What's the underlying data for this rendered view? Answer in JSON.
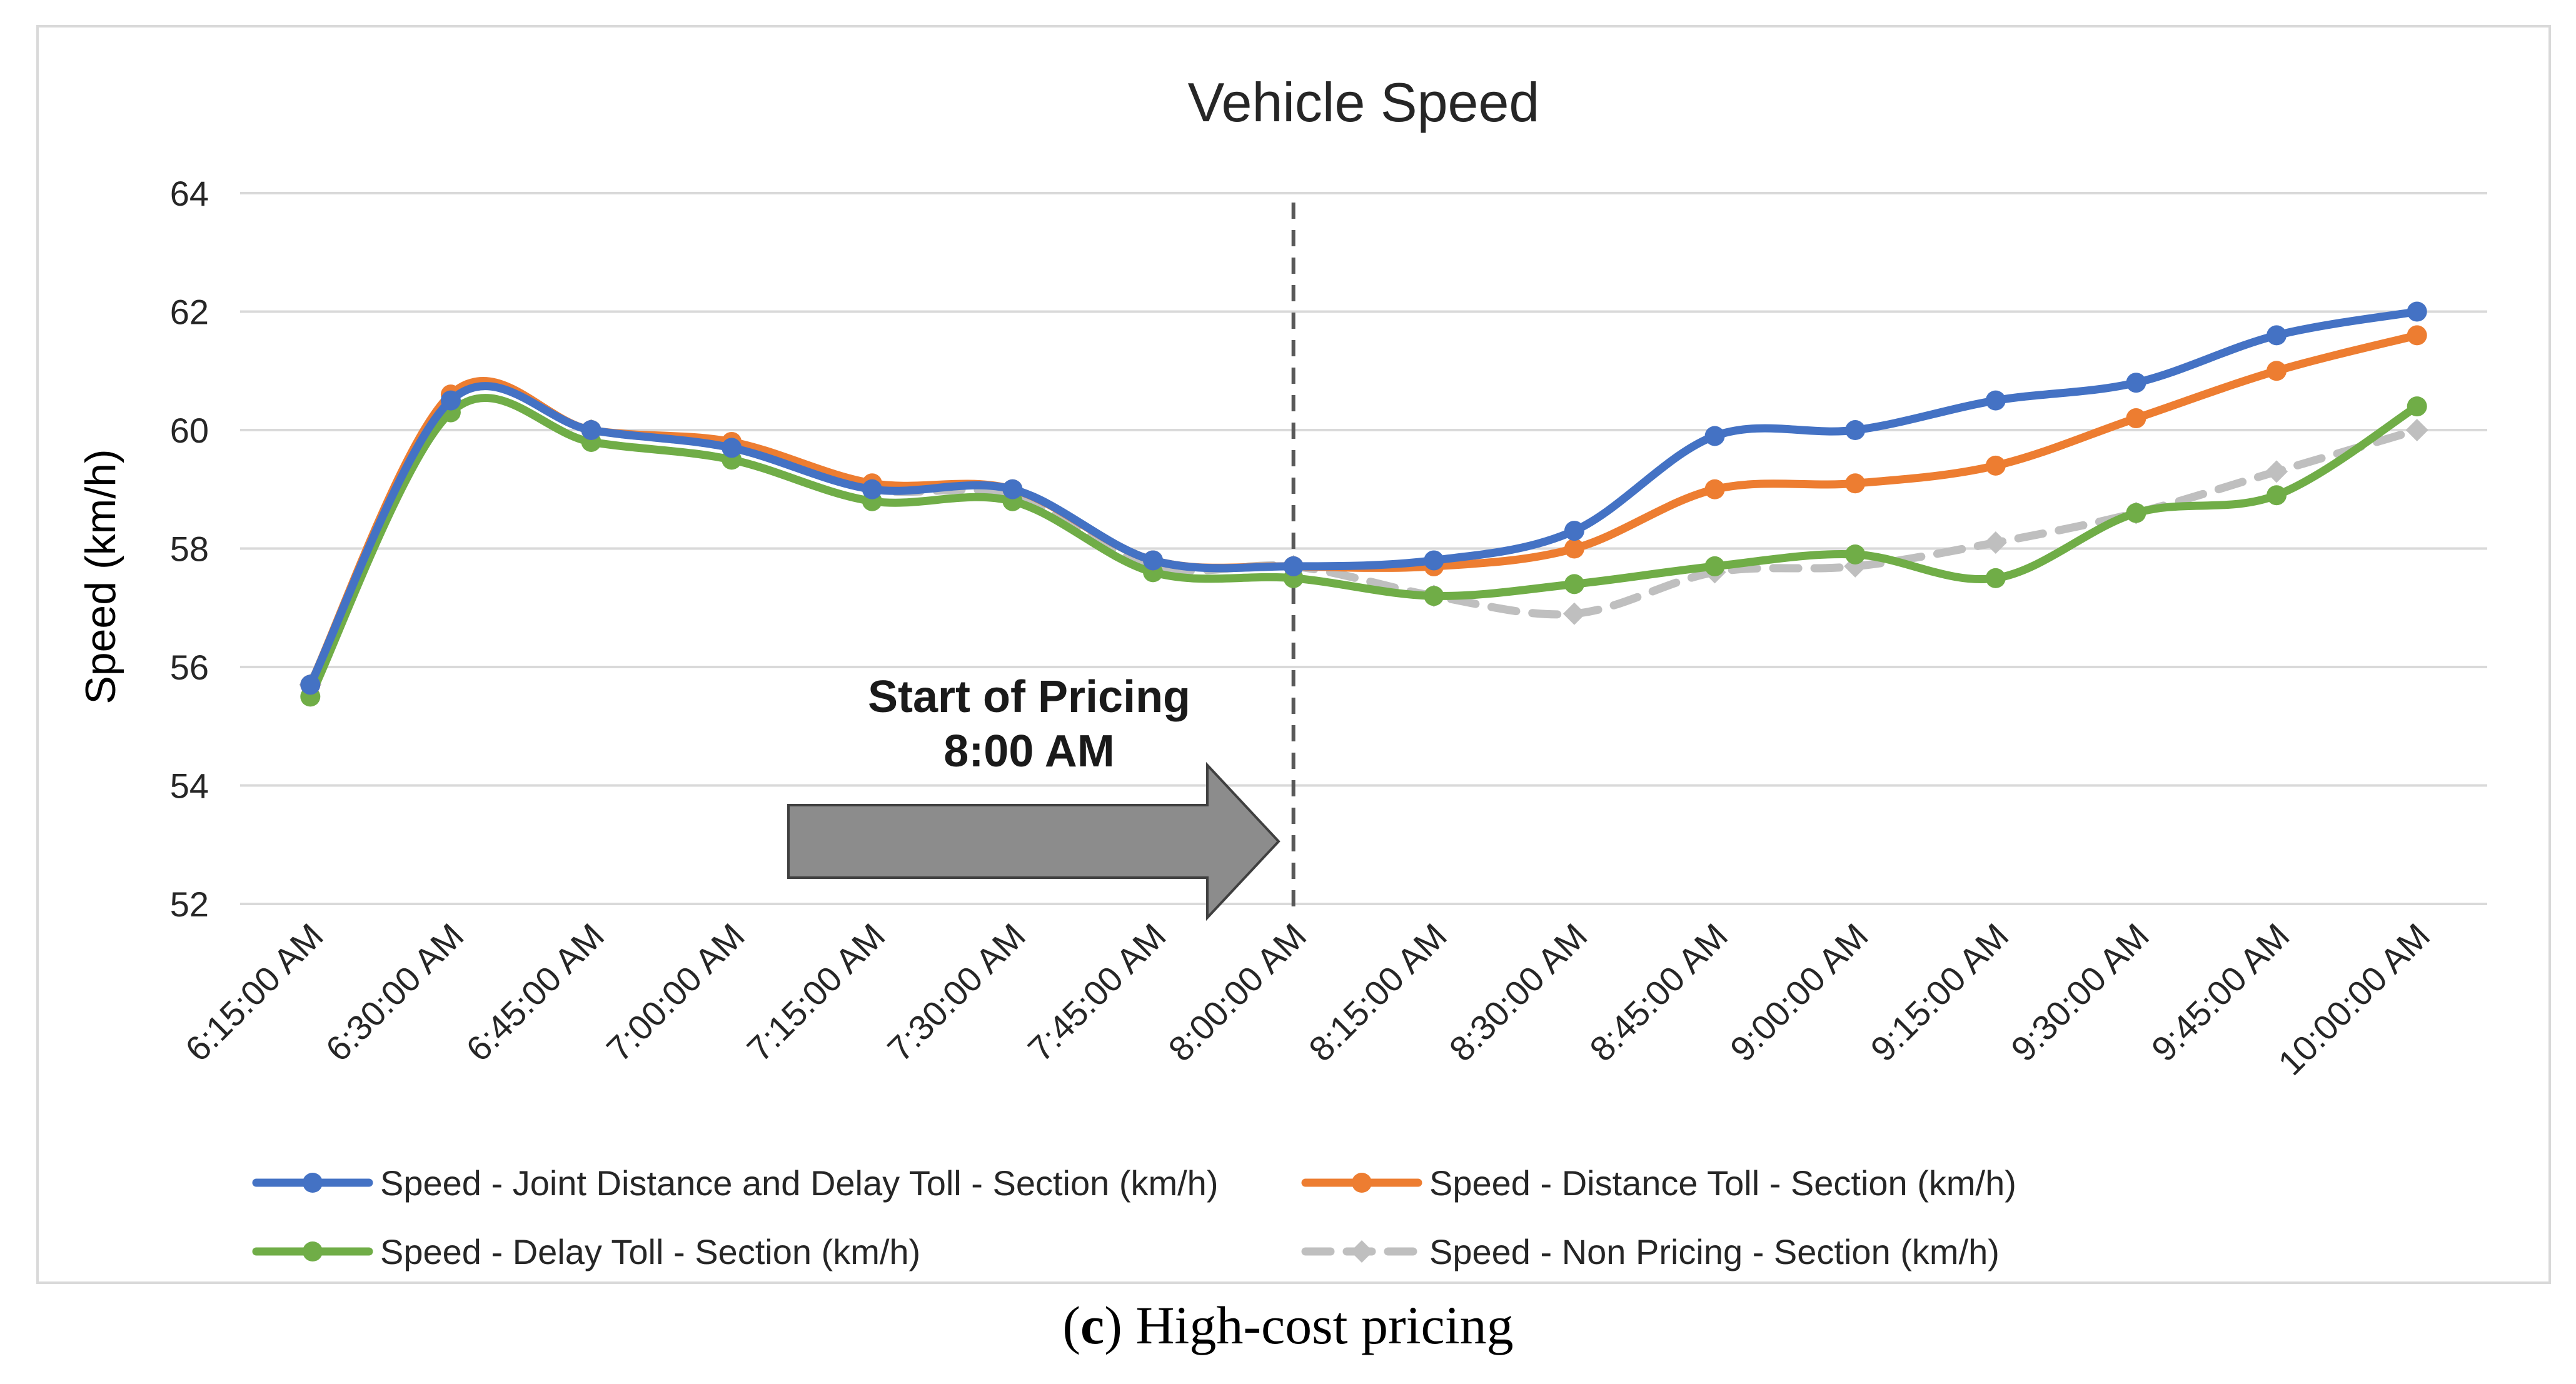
{
  "chart_data": {
    "type": "line",
    "title": "Vehicle Speed",
    "xlabel": "",
    "ylabel": "Speed (km/h)",
    "ylim": [
      52,
      64
    ],
    "ytick_step": 2,
    "yticks": [
      "52",
      "54",
      "56",
      "58",
      "60",
      "62",
      "64"
    ],
    "grid": true,
    "legend_position": "bottom",
    "categories": [
      "6:15:00 AM",
      "6:30:00 AM",
      "6:45:00 AM",
      "7:00:00 AM",
      "7:15:00 AM",
      "7:30:00 AM",
      "7:45:00 AM",
      "8:00:00 AM",
      "8:15:00 AM",
      "8:30:00 AM",
      "8:45:00 AM",
      "9:00:00 AM",
      "9:15:00 AM",
      "9:30:00 AM",
      "9:45:00 AM",
      "10:00:00 AM"
    ],
    "series": [
      {
        "name": "Speed - Joint Distance and Delay Toll - Section (km/h)",
        "color": "#4472c4",
        "dashed": false,
        "values": [
          55.7,
          60.5,
          60.0,
          59.7,
          59.0,
          59.0,
          57.8,
          57.7,
          57.8,
          58.3,
          59.9,
          60.0,
          60.5,
          60.8,
          61.6,
          62.0
        ]
      },
      {
        "name": "Speed - Distance Toll - Section (km/h)",
        "color": "#ed7d31",
        "dashed": false,
        "values": [
          55.7,
          60.6,
          60.0,
          59.8,
          59.1,
          59.0,
          57.8,
          57.7,
          57.7,
          58.0,
          59.0,
          59.1,
          59.4,
          60.2,
          61.0,
          61.6
        ]
      },
      {
        "name": "Speed - Delay Toll - Section (km/h)",
        "color": "#70ad47",
        "dashed": false,
        "values": [
          55.5,
          60.3,
          59.8,
          59.5,
          58.8,
          58.8,
          57.6,
          57.5,
          57.2,
          57.4,
          57.7,
          57.9,
          57.5,
          58.6,
          58.9,
          60.4
        ]
      },
      {
        "name": "Speed - Non Pricing - Section (km/h)",
        "color": "#bfbfbf",
        "dashed": true,
        "values": [
          55.7,
          60.5,
          60.0,
          59.7,
          59.0,
          58.9,
          57.7,
          57.7,
          57.2,
          56.9,
          57.6,
          57.7,
          58.1,
          58.6,
          59.3,
          60.0
        ]
      }
    ],
    "annotations": {
      "marker_category": "8:00:00 AM",
      "line1": "Start of Pricing",
      "line2": "8:00 AM"
    }
  },
  "caption": {
    "letter": "c",
    "text": "High-cost pricing"
  }
}
